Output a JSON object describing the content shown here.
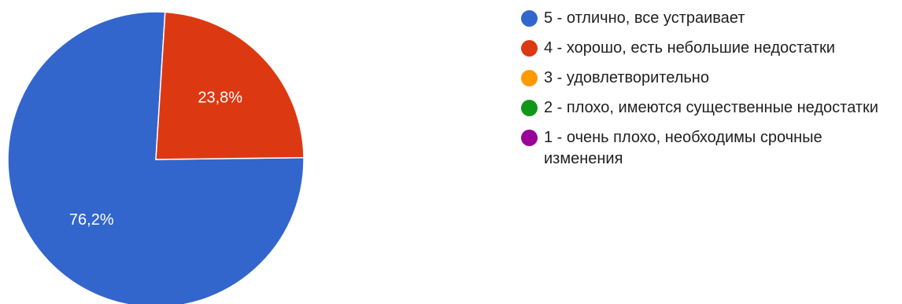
{
  "chart_data": {
    "type": "pie",
    "categories": [
      "5 - отлично, все устраивает",
      "4 - хорошо, есть небольшие недостатки",
      "3 - удовлетворительно",
      "2 - плохо, имеются существенные недостатки",
      "1 - очень плохо, необходимы срочные изменения"
    ],
    "values": [
      76.2,
      23.8,
      0,
      0,
      0
    ],
    "data_labels": [
      "76,2%",
      "23,8%",
      "",
      "",
      ""
    ],
    "colors": [
      "#3366cc",
      "#dc3912",
      "#ff9900",
      "#109618",
      "#990099"
    ],
    "legend_position": "right"
  }
}
